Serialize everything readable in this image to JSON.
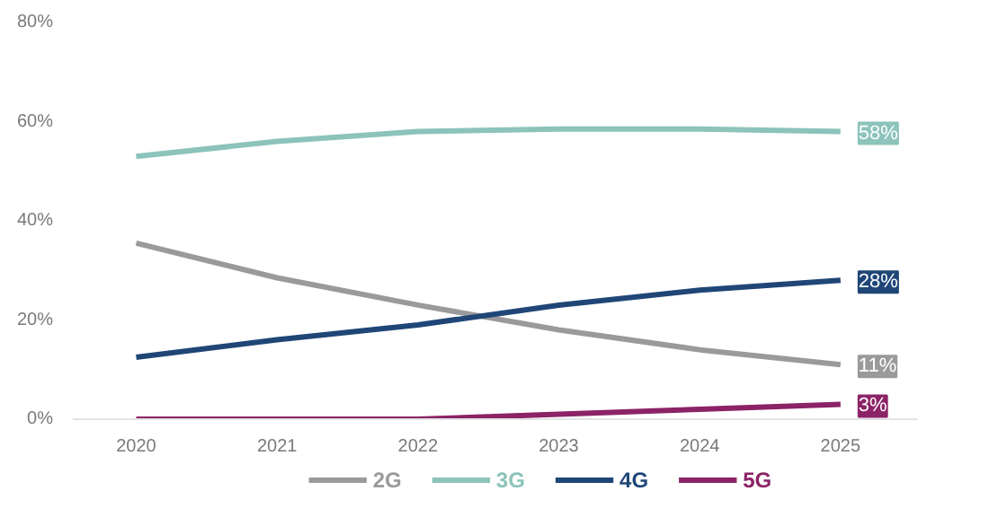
{
  "chart_data": {
    "type": "line",
    "x": [
      2020,
      2021,
      2022,
      2023,
      2024,
      2025
    ],
    "xlim": [
      2019.55,
      2025.55
    ],
    "xticks": [
      2020,
      2021,
      2022,
      2023,
      2024,
      2025
    ],
    "ylim": [
      0,
      80
    ],
    "yticks": [
      {
        "value": 0,
        "label": "0%"
      },
      {
        "value": 20,
        "label": "20%"
      },
      {
        "value": 40,
        "label": "40%"
      },
      {
        "value": 60,
        "label": "60%"
      },
      {
        "value": 80,
        "label": "80%"
      }
    ],
    "series": [
      {
        "name": "2G",
        "color": "#9a9a9a",
        "values": [
          35.5,
          28.5,
          23,
          18,
          14,
          11
        ],
        "value_labels": [
          null,
          null,
          null,
          null,
          null,
          "11%"
        ]
      },
      {
        "name": "3G",
        "color": "#8cc3bb",
        "values": [
          53,
          56,
          58,
          58.5,
          58.5,
          58
        ],
        "value_labels": [
          null,
          null,
          null,
          null,
          null,
          "58%"
        ]
      },
      {
        "name": "4G",
        "color": "#1f4677",
        "values": [
          12.5,
          16,
          19,
          23,
          26,
          28
        ],
        "value_labels": [
          null,
          null,
          null,
          null,
          null,
          "28%"
        ]
      },
      {
        "name": "5G",
        "color": "#8b2366",
        "values": [
          0,
          0,
          0,
          1,
          2,
          3
        ],
        "value_labels": [
          null,
          null,
          null,
          null,
          null,
          "3%"
        ]
      }
    ],
    "legend": "bottom",
    "grid": false,
    "marker": "none",
    "line_style": "solid"
  }
}
